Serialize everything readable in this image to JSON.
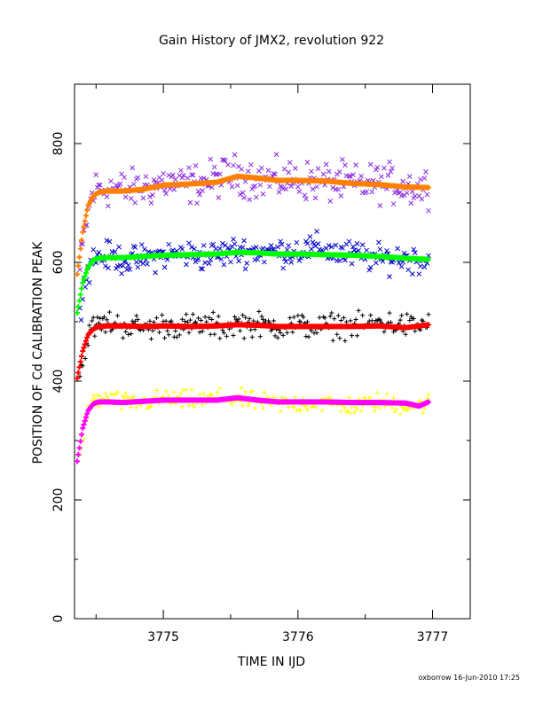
{
  "chart_data": {
    "type": "scatter",
    "title": "Gain History of JMX2, revolution 922",
    "xlabel": "TIME IN IJD",
    "ylabel": "POSITION OF Cd CALIBRATION PEAK",
    "footer": "oxborrow 16-Jun-2010 17:25",
    "xlim": [
      3774.34,
      3777.28
    ],
    "ylim": [
      0,
      900
    ],
    "xticks": [
      3775,
      3776,
      3777
    ],
    "yticks": [
      0,
      200,
      400,
      600,
      800
    ],
    "grid": false,
    "legend": "none",
    "series": [
      {
        "color": "#8a2be2",
        "marker": "x",
        "role": "raw",
        "x": [
          3774.38,
          3774.42,
          3774.46,
          3774.5,
          3774.6,
          3774.75,
          3774.9,
          3775.0,
          3775.15,
          3775.3,
          3775.45,
          3775.55,
          3775.7,
          3775.85,
          3776.0,
          3776.15,
          3776.3,
          3776.45,
          3776.6,
          3776.75,
          3776.9,
          3776.97
        ],
        "y": [
          585,
          660,
          705,
          725,
          725,
          722,
          728,
          735,
          730,
          735,
          745,
          748,
          740,
          738,
          740,
          735,
          735,
          730,
          735,
          730,
          725,
          728
        ],
        "scatter": 25
      },
      {
        "color": "#ff8000",
        "marker": "+",
        "role": "smoothed",
        "x": [
          3774.36,
          3774.4,
          3774.44,
          3774.48,
          3774.52,
          3774.58,
          3774.7,
          3774.85,
          3775.0,
          3775.2,
          3775.4,
          3775.55,
          3775.7,
          3775.85,
          3776.0,
          3776.2,
          3776.4,
          3776.6,
          3776.8,
          3776.97
        ],
        "y": [
          580,
          650,
          695,
          712,
          718,
          720,
          720,
          723,
          730,
          732,
          735,
          745,
          742,
          738,
          738,
          737,
          733,
          731,
          727,
          726
        ]
      },
      {
        "color": "#0000cd",
        "marker": "x",
        "role": "raw",
        "x": [
          3774.38,
          3774.42,
          3774.46,
          3774.5,
          3774.6,
          3774.75,
          3774.9,
          3775.0,
          3775.15,
          3775.3,
          3775.45,
          3775.55,
          3775.7,
          3775.85,
          3776.0,
          3776.15,
          3776.3,
          3776.45,
          3776.6,
          3776.75,
          3776.9,
          3776.97
        ],
        "y": [
          525,
          570,
          600,
          610,
          610,
          602,
          608,
          612,
          615,
          610,
          615,
          620,
          618,
          618,
          620,
          625,
          615,
          612,
          605,
          608,
          604,
          607
        ],
        "scatter": 18
      },
      {
        "color": "#00ff00",
        "marker": "+",
        "role": "smoothed",
        "x": [
          3774.36,
          3774.4,
          3774.44,
          3774.48,
          3774.52,
          3774.58,
          3774.7,
          3774.85,
          3775.0,
          3775.2,
          3775.4,
          3775.55,
          3775.7,
          3775.85,
          3776.0,
          3776.2,
          3776.4,
          3776.6,
          3776.8,
          3776.97
        ],
        "y": [
          515,
          565,
          592,
          604,
          607,
          608,
          608,
          610,
          612,
          613,
          614,
          617,
          616,
          614,
          614,
          613,
          612,
          610,
          607,
          605
        ]
      },
      {
        "color": "#000000",
        "marker": "+",
        "role": "raw",
        "x": [
          3774.38,
          3774.42,
          3774.46,
          3774.5,
          3774.6,
          3774.75,
          3774.9,
          3775.0,
          3775.15,
          3775.3,
          3775.45,
          3775.55,
          3775.7,
          3775.85,
          3776.0,
          3776.15,
          3776.3,
          3776.45,
          3776.6,
          3776.75,
          3776.9,
          3776.97
        ],
        "y": [
          410,
          460,
          485,
          495,
          498,
          492,
          490,
          495,
          492,
          495,
          490,
          498,
          495,
          492,
          495,
          490,
          495,
          492,
          500,
          495,
          492,
          500
        ],
        "scatter": 16
      },
      {
        "color": "#ff0000",
        "marker": "+",
        "role": "smoothed",
        "x": [
          3774.36,
          3774.4,
          3774.44,
          3774.48,
          3774.52,
          3774.58,
          3774.7,
          3774.85,
          3775.0,
          3775.2,
          3775.4,
          3775.55,
          3775.7,
          3775.85,
          3776.0,
          3776.2,
          3776.4,
          3776.6,
          3776.8,
          3776.97
        ],
        "y": [
          405,
          450,
          478,
          488,
          492,
          493,
          493,
          492,
          493,
          492,
          493,
          495,
          494,
          492,
          492,
          492,
          492,
          493,
          490,
          495
        ]
      },
      {
        "color": "#ffff00",
        "marker": "+",
        "role": "raw",
        "x": [
          3774.38,
          3774.42,
          3774.46,
          3774.5,
          3774.6,
          3774.75,
          3774.9,
          3775.0,
          3775.15,
          3775.3,
          3775.45,
          3775.55,
          3775.7,
          3775.85,
          3776.0,
          3776.15,
          3776.3,
          3776.45,
          3776.6,
          3776.75,
          3776.9,
          3776.97
        ],
        "y": [
          275,
          330,
          360,
          368,
          370,
          362,
          365,
          370,
          368,
          368,
          372,
          370,
          365,
          362,
          362,
          365,
          360,
          358,
          365,
          360,
          358,
          365
        ],
        "scatter": 12
      },
      {
        "color": "#ff00ff",
        "marker": "+",
        "role": "smoothed",
        "x": [
          3774.36,
          3774.4,
          3774.44,
          3774.48,
          3774.52,
          3774.58,
          3774.7,
          3774.85,
          3775.0,
          3775.2,
          3775.4,
          3775.55,
          3775.7,
          3775.85,
          3776.0,
          3776.2,
          3776.4,
          3776.6,
          3776.8,
          3776.9,
          3776.97
        ],
        "y": [
          265,
          320,
          350,
          362,
          365,
          365,
          364,
          366,
          368,
          368,
          368,
          372,
          368,
          365,
          365,
          365,
          364,
          364,
          363,
          358,
          365
        ]
      }
    ]
  }
}
